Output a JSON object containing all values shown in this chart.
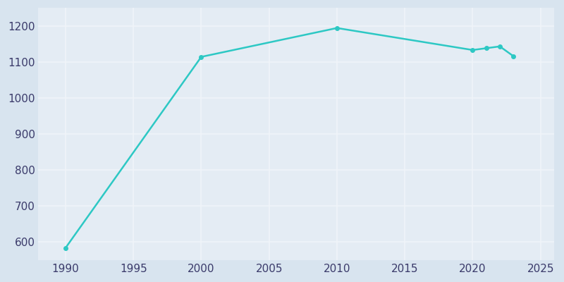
{
  "years": [
    1990,
    2000,
    2010,
    2020,
    2021,
    2022,
    2023
  ],
  "population": [
    584,
    1114,
    1194,
    1133,
    1138,
    1143,
    1116
  ],
  "line_color": "#2dc8c4",
  "marker_color": "#2dc8c4",
  "bg_color": "#e4ecf4",
  "grid_color": "#f0f4f9",
  "xlim": [
    1988,
    2026
  ],
  "ylim": [
    550,
    1250
  ],
  "xticks": [
    1990,
    1995,
    2000,
    2005,
    2010,
    2015,
    2020,
    2025
  ],
  "yticks": [
    600,
    700,
    800,
    900,
    1000,
    1100,
    1200
  ],
  "tick_label_color": "#3a3a6a",
  "fig_bg_color": "#d8e4ef",
  "linewidth": 1.8,
  "markersize": 4
}
